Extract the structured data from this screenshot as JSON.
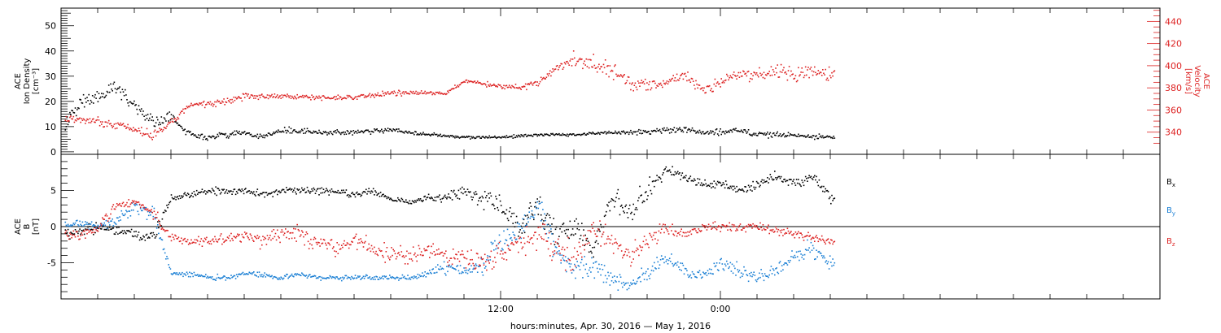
{
  "figure": {
    "xlabel": "hours:minutes, Apr. 30, 2016 — May  1, 2016",
    "x_range_hours": [
      -12,
      48
    ],
    "data_end_hour": 30.2,
    "time_ticks": [
      {
        "hour": 12,
        "label": "12:00"
      },
      {
        "hour": 24,
        "label": "0:00"
      }
    ]
  },
  "chart_data": [
    {
      "type": "scatter",
      "title": "",
      "ylabel_left": [
        "ACE",
        "Ion Density",
        "[cm⁻³]"
      ],
      "ylabel_right": [
        "ACE",
        "Velocity",
        "[km/s]"
      ],
      "left_axis": {
        "range": [
          -1,
          57
        ],
        "ticks": [
          0,
          10,
          20,
          30,
          40,
          50
        ]
      },
      "right_axis": {
        "range": [
          320,
          452
        ],
        "ticks": [
          340,
          360,
          380,
          400,
          420,
          440
        ],
        "color": "#dd2222"
      },
      "series": [
        {
          "name": "Ion Density",
          "color": "#000000",
          "axis": "left",
          "x": [
            -11.8,
            -11,
            -10,
            -9,
            -8,
            -7,
            -6,
            -5,
            -4,
            -3,
            -2,
            -1,
            0,
            2,
            4,
            6,
            8,
            10,
            12,
            14,
            16,
            18,
            20,
            21,
            22,
            23,
            24,
            25,
            26,
            27,
            28,
            29,
            30
          ],
          "y": [
            11,
            20,
            22,
            26,
            18,
            12,
            14,
            7,
            6,
            7,
            8,
            6,
            9,
            8,
            8,
            9,
            7,
            6,
            6,
            7,
            7,
            8,
            8,
            9,
            9,
            8,
            8,
            9,
            7,
            7,
            7,
            6,
            6
          ],
          "spread": [
            5,
            5,
            5,
            5,
            4,
            5,
            4,
            2,
            2,
            2,
            2,
            2,
            2,
            1.5,
            1.5,
            1.5,
            1,
            1,
            1,
            1,
            1,
            1,
            2,
            2,
            2,
            2,
            2,
            2,
            2,
            2,
            1.5,
            1.5,
            1.5
          ]
        },
        {
          "name": "Velocity",
          "color": "#dd2222",
          "axis": "right",
          "x": [
            -11.8,
            -10,
            -9,
            -8,
            -7,
            -6,
            -5,
            -4,
            -3,
            -2,
            0,
            2,
            4,
            6,
            8,
            9,
            10,
            11,
            12,
            13,
            14,
            15,
            16,
            17,
            18,
            19,
            20,
            21,
            22,
            23,
            24,
            25,
            26,
            27,
            28,
            29,
            30
          ],
          "y": [
            352,
            350,
            347,
            343,
            337,
            350,
            365,
            366,
            368,
            373,
            373,
            372,
            372,
            376,
            376,
            376,
            386,
            384,
            382,
            381,
            385,
            398,
            405,
            402,
            398,
            385,
            382,
            386,
            392,
            378,
            385,
            392,
            393,
            395,
            392,
            393,
            394
          ],
          "spread": [
            6,
            6,
            6,
            6,
            6,
            5,
            5,
            5,
            5,
            5,
            4,
            4,
            4,
            4,
            3,
            3,
            4,
            4,
            4,
            4,
            6,
            8,
            12,
            12,
            12,
            10,
            10,
            10,
            8,
            8,
            10,
            10,
            10,
            10,
            10,
            10,
            10
          ]
        }
      ]
    },
    {
      "type": "scatter",
      "title": "",
      "ylabel_left": [
        "ACE",
        "B",
        "[nT]"
      ],
      "left_axis": {
        "range": [
          -10,
          10
        ],
        "ticks": [
          -5,
          0,
          5
        ]
      },
      "zero_line": 0,
      "series": [
        {
          "name": "Bx",
          "label": "B",
          "subscript": "x",
          "color": "#000000",
          "x": [
            -11.8,
            -11,
            -10,
            -9,
            -8,
            -7,
            -6,
            -5,
            -4,
            -3,
            -2,
            -1,
            0,
            1,
            2,
            3,
            4,
            5,
            6,
            7,
            8,
            9,
            10,
            11,
            12,
            13,
            14,
            15,
            16,
            17,
            18,
            19,
            20,
            21,
            22,
            23,
            24,
            25,
            26,
            27,
            28,
            29,
            30
          ],
          "y": [
            -1,
            -0.5,
            0,
            -0.5,
            -1,
            -1.5,
            4,
            4.5,
            5,
            5,
            5,
            4.5,
            5,
            5,
            5,
            5,
            4.5,
            5,
            4,
            3.5,
            4,
            4,
            5,
            4,
            3,
            0,
            3,
            -1,
            0,
            -3,
            4,
            2,
            5,
            8,
            7,
            6,
            6,
            5,
            6,
            7,
            6,
            7,
            4
          ],
          "spread": [
            1,
            1,
            1,
            1,
            1,
            1.5,
            0.8,
            0.8,
            0.8,
            0.8,
            0.8,
            0.8,
            0.8,
            0.8,
            0.8,
            0.8,
            0.8,
            0.8,
            0.8,
            0.8,
            0.8,
            1.2,
            1.5,
            2,
            2.5,
            3,
            3,
            3,
            3,
            3,
            3,
            3,
            2.5,
            1,
            1,
            1,
            1,
            1,
            1,
            1,
            1,
            1,
            1.5
          ]
        },
        {
          "name": "By",
          "label": "B",
          "subscript": "y",
          "color": "#1a7fd4",
          "x": [
            -11.8,
            -11,
            -10,
            -9,
            -8,
            -7,
            -6,
            -5,
            -4,
            -3,
            -2,
            -1,
            0,
            1,
            2,
            3,
            4,
            5,
            6,
            7,
            8,
            9,
            10,
            11,
            12,
            13,
            14,
            15,
            16,
            17,
            18,
            19,
            20,
            21,
            22,
            23,
            24,
            25,
            26,
            27,
            28,
            29,
            30
          ],
          "y": [
            0,
            0.5,
            0,
            1,
            3,
            2,
            -6.5,
            -6.5,
            -7,
            -7,
            -6.5,
            -6.5,
            -7,
            -6.5,
            -7,
            -7,
            -7,
            -7,
            -7,
            -7,
            -6.5,
            -5.5,
            -6,
            -5,
            -2,
            0,
            3,
            -3,
            -6,
            -5,
            -7,
            -8,
            -6,
            -4,
            -6,
            -7,
            -5,
            -6,
            -7,
            -6,
            -4,
            -3,
            -5
          ],
          "spread": [
            1,
            1,
            1,
            1.5,
            1.5,
            2,
            0.6,
            0.6,
            0.6,
            0.6,
            0.6,
            0.6,
            0.6,
            0.6,
            0.6,
            0.6,
            0.6,
            0.6,
            0.6,
            0.6,
            1,
            1.5,
            1.5,
            2.5,
            3,
            3,
            3,
            3,
            3,
            3,
            2,
            1.5,
            2,
            2,
            2,
            1.5,
            2,
            2,
            1.5,
            2,
            2,
            2,
            2
          ]
        },
        {
          "name": "Bz",
          "label": "B",
          "subscript": "z",
          "color": "#dd2222",
          "x": [
            -11.8,
            -11,
            -10,
            -9,
            -8,
            -7,
            -6,
            -5,
            -4,
            -3,
            -2,
            -1,
            0,
            1,
            2,
            3,
            4,
            5,
            6,
            7,
            8,
            9,
            10,
            11,
            12,
            13,
            14,
            15,
            16,
            17,
            18,
            19,
            20,
            21,
            22,
            23,
            24,
            25,
            26,
            27,
            28,
            29,
            30
          ],
          "y": [
            -1,
            -1,
            0,
            3,
            3.5,
            2,
            -1.5,
            -2,
            -2,
            -1.5,
            -1,
            -2,
            -1,
            -1,
            -2,
            -3,
            -2,
            -3,
            -4,
            -4,
            -3,
            -4,
            -4,
            -5,
            -4,
            -2,
            -1,
            -3,
            -4,
            0,
            -2,
            -4,
            -2,
            0,
            -1,
            0,
            0,
            0,
            0,
            -0.5,
            -1,
            -1.5,
            -2
          ],
          "spread": [
            1,
            1,
            1.5,
            1,
            1,
            1.5,
            1,
            1,
            1,
            1.5,
            1.5,
            1.5,
            2,
            2,
            2,
            2,
            2,
            2,
            2,
            2,
            2,
            2,
            2,
            2.5,
            3,
            3,
            3,
            3,
            3,
            3,
            3,
            3,
            2.5,
            1.5,
            1,
            1,
            1,
            1,
            1,
            1,
            1,
            1,
            1
          ]
        }
      ]
    }
  ]
}
